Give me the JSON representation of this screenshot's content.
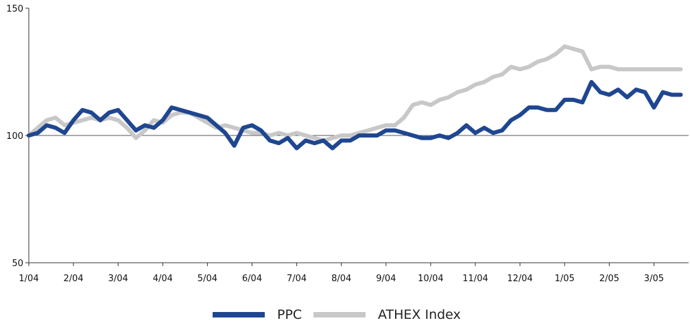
{
  "chart_data": {
    "type": "line",
    "title": "",
    "xlabel": "",
    "ylabel": "",
    "ylim": [
      50,
      150
    ],
    "y_ticks": [
      50,
      100,
      150
    ],
    "x_ticks": [
      "1/04",
      "2/04",
      "3/04",
      "4/04",
      "5/04",
      "6/04",
      "7/04",
      "8/04",
      "9/04",
      "10/04",
      "11/04",
      "12/04",
      "1/05",
      "2/05",
      "3/05"
    ],
    "reference_line": 100,
    "grid": false,
    "legend_position": "bottom",
    "x": [
      0,
      0.2,
      0.4,
      0.6,
      0.8,
      1,
      1.2,
      1.4,
      1.6,
      1.8,
      2,
      2.2,
      2.4,
      2.6,
      2.8,
      3,
      3.2,
      3.4,
      3.6,
      3.8,
      4,
      4.2,
      4.4,
      4.6,
      4.8,
      5,
      5.2,
      5.4,
      5.6,
      5.8,
      6,
      6.2,
      6.4,
      6.6,
      6.8,
      7,
      7.2,
      7.4,
      7.6,
      7.8,
      8,
      8.2,
      8.4,
      8.6,
      8.8,
      9,
      9.2,
      9.4,
      9.6,
      9.8,
      10,
      10.2,
      10.4,
      10.6,
      10.8,
      11,
      11.2,
      11.4,
      11.6,
      11.8,
      12,
      12.2,
      12.4,
      12.6,
      12.8,
      13,
      13.2,
      13.4,
      13.6,
      13.8,
      14,
      14.2,
      14.4,
      14.6
    ],
    "series": [
      {
        "name": "PPC",
        "color": "#1f4690",
        "values": [
          100,
          101,
          104,
          103,
          101,
          106,
          110,
          109,
          106,
          109,
          110,
          106,
          102,
          104,
          103,
          106,
          111,
          110,
          109,
          108,
          107,
          104,
          101,
          96,
          103,
          104,
          102,
          98,
          97,
          99,
          95,
          98,
          97,
          98,
          95,
          98,
          98,
          100,
          100,
          100,
          102,
          102,
          101,
          100,
          99,
          99,
          100,
          99,
          101,
          104,
          101,
          103,
          101,
          102,
          106,
          108,
          111,
          111,
          110,
          110,
          114,
          114,
          113,
          121,
          117,
          116,
          118,
          115,
          118,
          117,
          111,
          117,
          116,
          116
        ]
      },
      {
        "name": "ATHEX Index",
        "color": "#c8c8c8",
        "values": [
          100,
          103,
          106,
          107,
          104,
          105,
          106,
          107,
          106,
          107,
          106,
          103,
          99,
          102,
          106,
          105,
          108,
          109,
          109,
          107,
          105,
          103,
          104,
          103,
          102,
          101,
          101,
          100,
          101,
          100,
          101,
          100,
          99,
          98,
          99,
          100,
          100,
          101,
          102,
          103,
          104,
          104,
          107,
          112,
          113,
          112,
          114,
          115,
          117,
          118,
          120,
          121,
          123,
          124,
          127,
          126,
          127,
          129,
          130,
          132,
          135,
          134,
          133,
          126,
          127,
          127,
          126,
          126,
          126,
          126,
          126,
          126,
          126,
          126
        ]
      }
    ]
  }
}
